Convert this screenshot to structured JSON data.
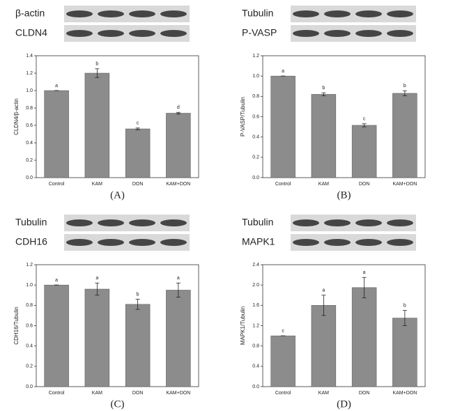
{
  "chart_data": [
    {
      "type": "bar",
      "panel": "(A)",
      "blot_labels": [
        "β-actin",
        "CLDN4"
      ],
      "y_label": "CLDN4/β-actin",
      "categories": [
        "Control",
        "KAM",
        "DON",
        "KAM+DON"
      ],
      "values": [
        1.0,
        1.2,
        0.56,
        0.74
      ],
      "errors": [
        0,
        0.05,
        0.01,
        0.01
      ],
      "letters": [
        "a",
        "b",
        "c",
        "d"
      ],
      "color": "#8c8c8c",
      "ylim": [
        0,
        1.4
      ],
      "yticks": [
        {
          "value": 0,
          "label": "0.0"
        },
        0.2,
        0.4,
        0.6,
        0.8,
        {
          "value": 1,
          "label": "1.0"
        },
        1.2,
        1.4
      ]
    },
    {
      "type": "bar",
      "panel": "(B)",
      "blot_labels": [
        "Tubulin",
        "P-VASP"
      ],
      "y_label": "P-VASP/Tubulin",
      "categories": [
        "Control",
        "KAM",
        "DON",
        "KAM+DON"
      ],
      "values": [
        1.0,
        0.82,
        0.515,
        0.83
      ],
      "errors": [
        0,
        0.015,
        0.015,
        0.025
      ],
      "letters": [
        "a",
        "b",
        "c",
        "b"
      ],
      "color": "#8c8c8c",
      "ylim": [
        0,
        1.2
      ],
      "yticks": [
        {
          "value": 0,
          "label": "0.0"
        },
        0.2,
        0.4,
        0.6,
        0.8,
        {
          "value": 1,
          "label": "1.0"
        },
        1.2
      ]
    },
    {
      "type": "bar",
      "panel": "(C)",
      "blot_labels": [
        "Tubulin",
        "CDH16"
      ],
      "y_label": "CDH16/Tubulin",
      "categories": [
        "Control",
        "KAM",
        "DON",
        "KAM+DON"
      ],
      "values": [
        1.0,
        0.96,
        0.81,
        0.95
      ],
      "errors": [
        0,
        0.06,
        0.05,
        0.07
      ],
      "letters": [
        "a",
        "a",
        "b",
        "a"
      ],
      "color": "#8c8c8c",
      "ylim": [
        0,
        1.2
      ],
      "yticks": [
        {
          "value": 0,
          "label": "0.0"
        },
        0.2,
        0.4,
        0.6,
        0.8,
        {
          "value": 1,
          "label": "1.0"
        },
        1.2
      ]
    },
    {
      "type": "bar",
      "panel": "(D)",
      "blot_labels": [
        "Tubulin",
        "MAPK1"
      ],
      "y_label": "MAPK1/Tubulin",
      "categories": [
        "Control",
        "KAM",
        "DON",
        "KAM+DON"
      ],
      "values": [
        1.0,
        1.6,
        1.95,
        1.35
      ],
      "errors": [
        0,
        0.2,
        0.2,
        0.15
      ],
      "letters": [
        "c",
        "a",
        "a",
        "b"
      ],
      "color": "#8c8c8c",
      "ylim": [
        0,
        2.4
      ],
      "yticks": [
        {
          "value": 0,
          "label": "0.0"
        },
        0.4,
        0.8,
        1.2,
        1.6,
        {
          "value": 2,
          "label": "2.0"
        },
        2.4
      ]
    }
  ]
}
